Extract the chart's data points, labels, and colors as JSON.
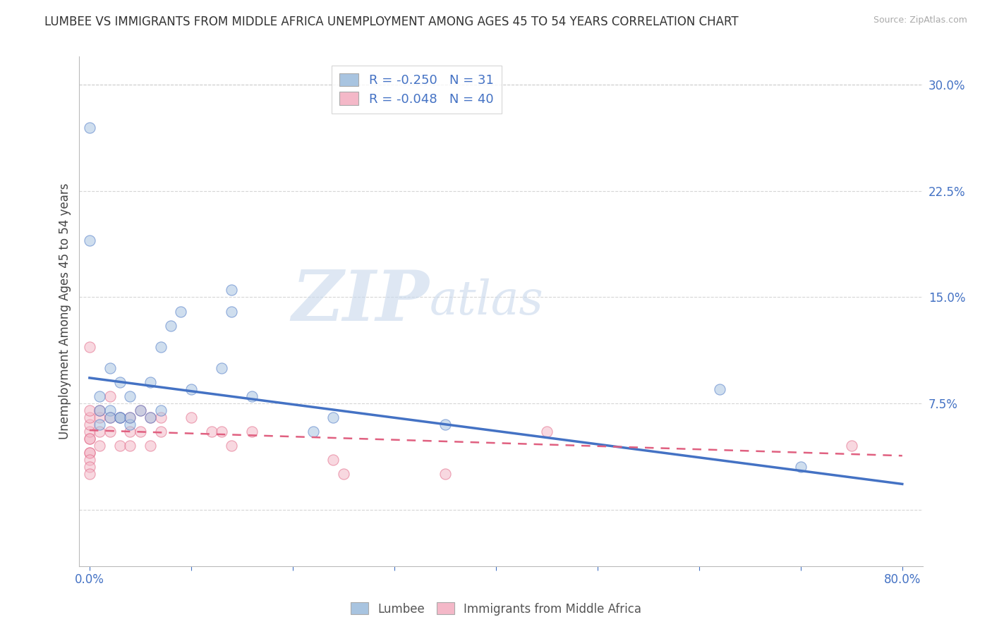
{
  "title": "LUMBEE VS IMMIGRANTS FROM MIDDLE AFRICA UNEMPLOYMENT AMONG AGES 45 TO 54 YEARS CORRELATION CHART",
  "source": "Source: ZipAtlas.com",
  "ylabel": "Unemployment Among Ages 45 to 54 years",
  "xlim": [
    -0.01,
    0.82
  ],
  "ylim": [
    -0.04,
    0.32
  ],
  "xticks": [
    0.0,
    0.1,
    0.2,
    0.3,
    0.4,
    0.5,
    0.6,
    0.7,
    0.8
  ],
  "yticks_right": [
    0.0,
    0.075,
    0.15,
    0.225,
    0.3
  ],
  "yticklabels_right": [
    "",
    "7.5%",
    "15.0%",
    "22.5%",
    "30.0%"
  ],
  "lumbee_color": "#a8c4e0",
  "immigrants_color": "#f4b8c8",
  "lumbee_line_color": "#4472c4",
  "immigrants_line_color": "#e06080",
  "lumbee_R": -0.25,
  "lumbee_N": 31,
  "immigrants_R": -0.048,
  "immigrants_N": 40,
  "watermark_zip": "ZIP",
  "watermark_atlas": "atlas",
  "background_color": "#ffffff",
  "grid_color": "#cccccc",
  "lumbee_scatter_x": [
    0.01,
    0.01,
    0.02,
    0.03,
    0.03,
    0.04,
    0.04,
    0.05,
    0.06,
    0.07,
    0.08,
    0.09,
    0.1,
    0.13,
    0.14,
    0.16,
    0.22,
    0.24,
    0.35,
    0.62,
    0.7,
    0.0,
    0.0,
    0.01,
    0.02,
    0.02,
    0.03,
    0.04,
    0.06,
    0.07,
    0.14
  ],
  "lumbee_scatter_y": [
    0.08,
    0.07,
    0.07,
    0.09,
    0.065,
    0.08,
    0.06,
    0.07,
    0.09,
    0.07,
    0.13,
    0.14,
    0.085,
    0.1,
    0.155,
    0.08,
    0.055,
    0.065,
    0.06,
    0.085,
    0.03,
    0.19,
    0.27,
    0.06,
    0.065,
    0.1,
    0.065,
    0.065,
    0.065,
    0.115,
    0.14
  ],
  "immigrants_scatter_x": [
    0.0,
    0.0,
    0.0,
    0.0,
    0.0,
    0.0,
    0.0,
    0.0,
    0.0,
    0.0,
    0.0,
    0.0,
    0.01,
    0.01,
    0.01,
    0.01,
    0.02,
    0.02,
    0.02,
    0.03,
    0.03,
    0.04,
    0.04,
    0.04,
    0.05,
    0.05,
    0.06,
    0.06,
    0.07,
    0.07,
    0.1,
    0.12,
    0.13,
    0.14,
    0.16,
    0.25,
    0.45,
    0.75,
    0.24,
    0.35
  ],
  "immigrants_scatter_y": [
    0.04,
    0.05,
    0.055,
    0.06,
    0.065,
    0.04,
    0.035,
    0.03,
    0.025,
    0.05,
    0.07,
    0.115,
    0.055,
    0.065,
    0.07,
    0.045,
    0.08,
    0.055,
    0.065,
    0.045,
    0.065,
    0.055,
    0.065,
    0.045,
    0.07,
    0.055,
    0.065,
    0.045,
    0.055,
    0.065,
    0.065,
    0.055,
    0.055,
    0.045,
    0.055,
    0.025,
    0.055,
    0.045,
    0.035,
    0.025
  ],
  "lumbee_line_y_start": 0.093,
  "lumbee_line_y_end": 0.018,
  "immigrants_line_y_start": 0.056,
  "immigrants_line_y_end": 0.038,
  "legend_R_color": "#4472c4",
  "legend_fontsize": 13,
  "title_fontsize": 12,
  "axis_label_fontsize": 12,
  "tick_fontsize": 12,
  "marker_size": 120,
  "marker_alpha": 0.55
}
